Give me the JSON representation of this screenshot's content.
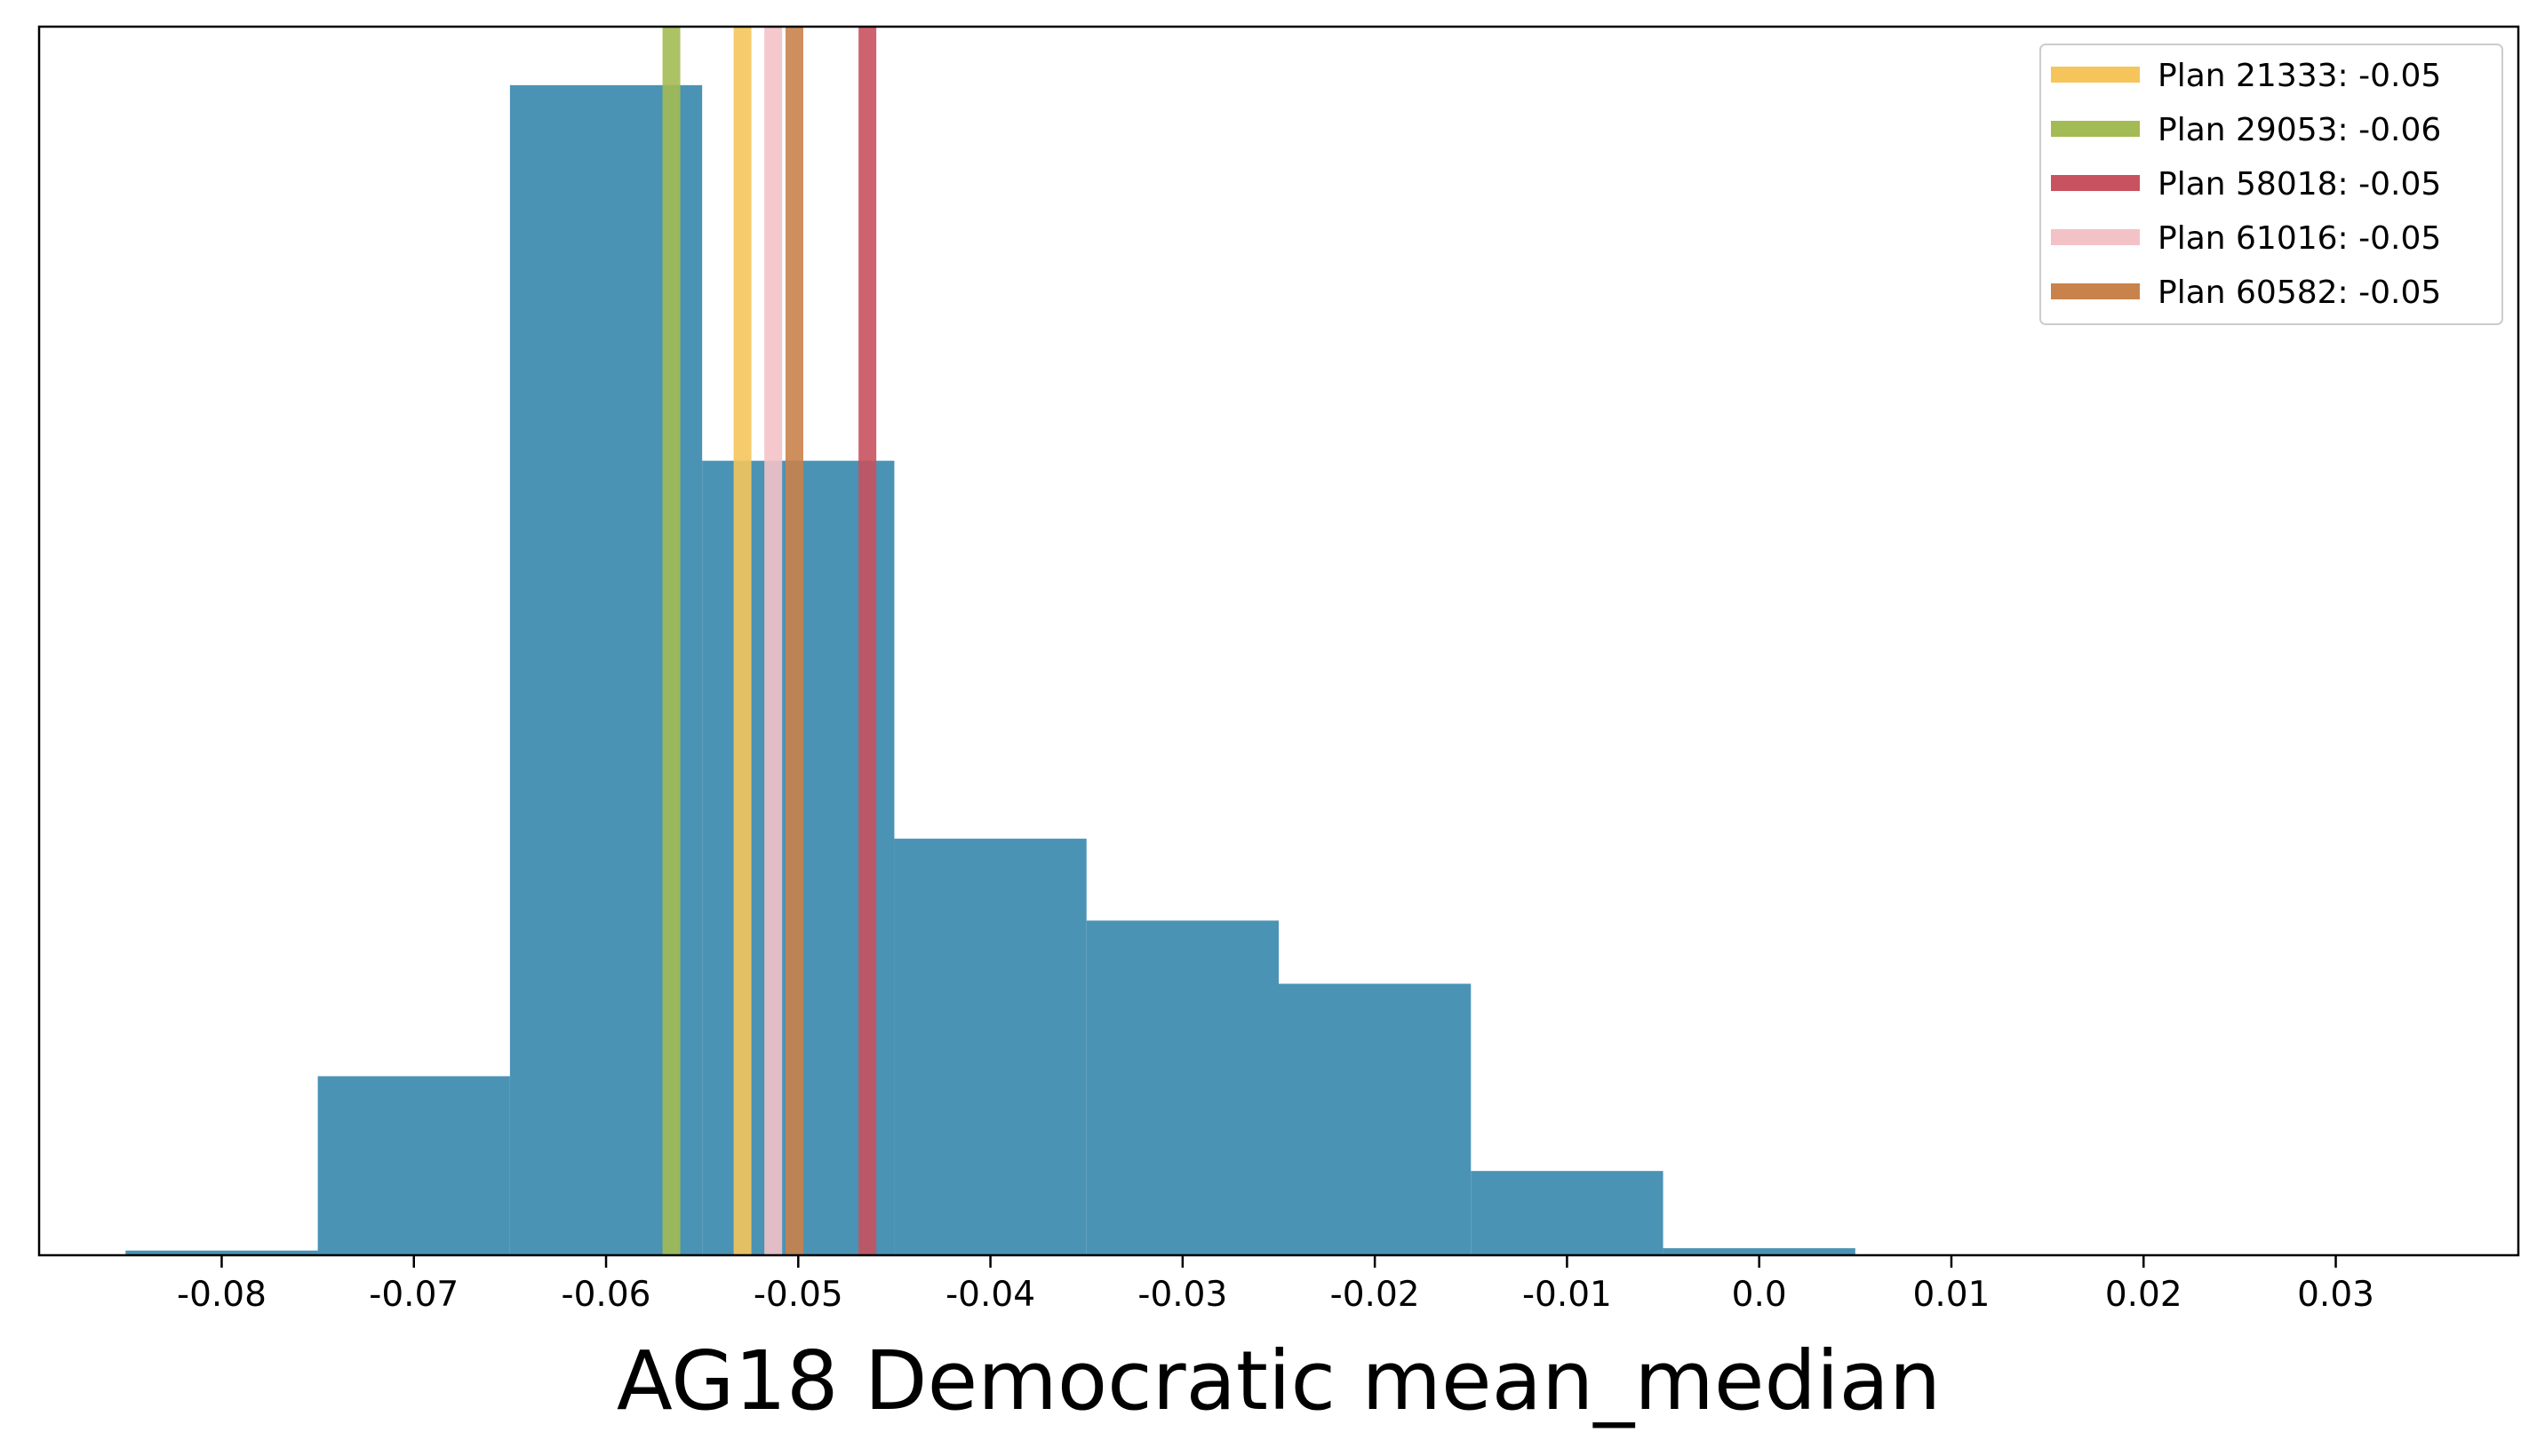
{
  "chart_data": {
    "type": "histogram",
    "xlabel": "AG18 Democratic mean_median",
    "ylabel": "",
    "xlim": [
      -0.0895,
      0.0395
    ],
    "ylim": [
      0,
      1.05
    ],
    "grid": false,
    "legend_position": "top-right",
    "bar_color": "#4a93b5",
    "bins": [
      {
        "x0": -0.085,
        "x1": -0.075,
        "value": 0.004
      },
      {
        "x0": -0.075,
        "x1": -0.065,
        "value": 0.153
      },
      {
        "x0": -0.065,
        "x1": -0.055,
        "value": 1.0
      },
      {
        "x0": -0.055,
        "x1": -0.045,
        "value": 0.679
      },
      {
        "x0": -0.045,
        "x1": -0.035,
        "value": 0.356
      },
      {
        "x0": -0.035,
        "x1": -0.025,
        "value": 0.286
      },
      {
        "x0": -0.025,
        "x1": -0.015,
        "value": 0.232
      },
      {
        "x0": -0.015,
        "x1": -0.005,
        "value": 0.072
      },
      {
        "x0": -0.005,
        "x1": 0.005,
        "value": 0.006
      }
    ],
    "xticks": [
      {
        "value": -0.08,
        "label": "-0.08"
      },
      {
        "value": -0.07,
        "label": "-0.07"
      },
      {
        "value": -0.06,
        "label": "-0.06"
      },
      {
        "value": -0.05,
        "label": "-0.05"
      },
      {
        "value": -0.04,
        "label": "-0.04"
      },
      {
        "value": -0.03,
        "label": "-0.03"
      },
      {
        "value": -0.02,
        "label": "-0.02"
      },
      {
        "value": -0.01,
        "label": "-0.01"
      },
      {
        "value": 0.0,
        "label": "0.0"
      },
      {
        "value": 0.01,
        "label": "0.01"
      },
      {
        "value": 0.02,
        "label": "0.02"
      },
      {
        "value": 0.03,
        "label": "0.03"
      }
    ],
    "vlines": [
      {
        "name": "Plan 21333: -0.05",
        "x": -0.0529,
        "color": "#f5c55c"
      },
      {
        "name": "Plan 29053: -0.06",
        "x": -0.0566,
        "color": "#a3bb54"
      },
      {
        "name": "Plan 58018: -0.05",
        "x": -0.0464,
        "color": "#c8525f"
      },
      {
        "name": "Plan 61016: -0.05",
        "x": -0.0513,
        "color": "#f3c2c6"
      },
      {
        "name": "Plan 60582: -0.05",
        "x": -0.0502,
        "color": "#c9824c"
      }
    ]
  }
}
